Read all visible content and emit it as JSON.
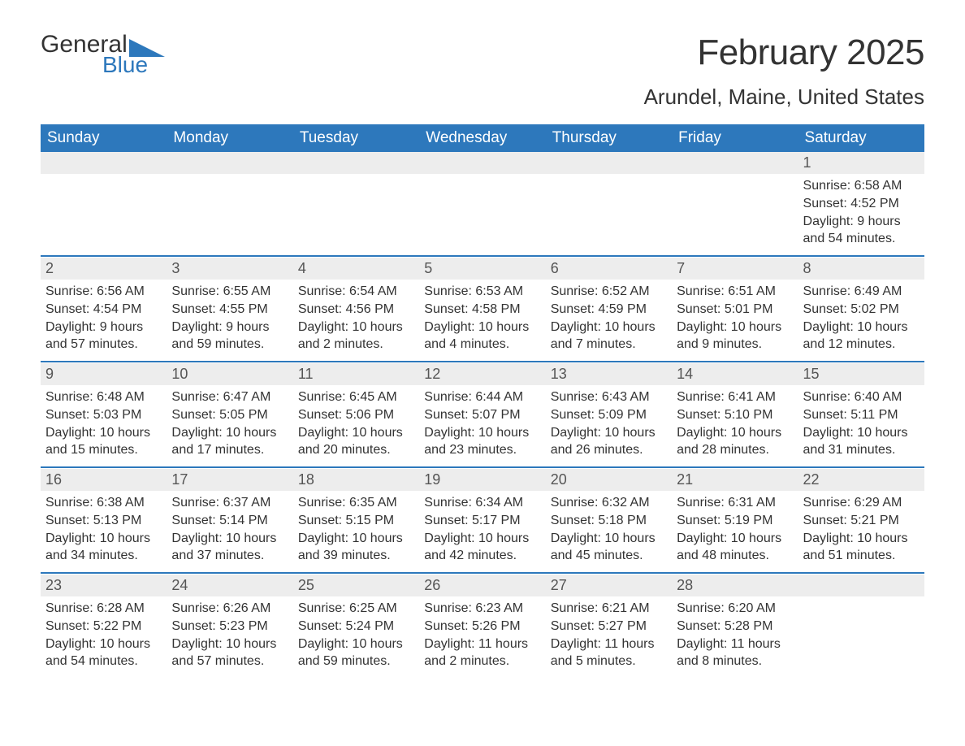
{
  "logo": {
    "text_top": "General",
    "text_bottom": "Blue",
    "accent_color": "#2d78bc"
  },
  "title": "February 2025",
  "location": "Arundel, Maine, United States",
  "colors": {
    "header_bg": "#2d78bc",
    "header_text": "#ffffff",
    "daynum_bg": "#ededed",
    "text": "#333333",
    "rule": "#2d78bc"
  },
  "day_headers": [
    "Sunday",
    "Monday",
    "Tuesday",
    "Wednesday",
    "Thursday",
    "Friday",
    "Saturday"
  ],
  "weeks": [
    [
      null,
      null,
      null,
      null,
      null,
      null,
      {
        "n": "1",
        "sunrise": "Sunrise: 6:58 AM",
        "sunset": "Sunset: 4:52 PM",
        "daylight": "Daylight: 9 hours and 54 minutes."
      }
    ],
    [
      {
        "n": "2",
        "sunrise": "Sunrise: 6:56 AM",
        "sunset": "Sunset: 4:54 PM",
        "daylight": "Daylight: 9 hours and 57 minutes."
      },
      {
        "n": "3",
        "sunrise": "Sunrise: 6:55 AM",
        "sunset": "Sunset: 4:55 PM",
        "daylight": "Daylight: 9 hours and 59 minutes."
      },
      {
        "n": "4",
        "sunrise": "Sunrise: 6:54 AM",
        "sunset": "Sunset: 4:56 PM",
        "daylight": "Daylight: 10 hours and 2 minutes."
      },
      {
        "n": "5",
        "sunrise": "Sunrise: 6:53 AM",
        "sunset": "Sunset: 4:58 PM",
        "daylight": "Daylight: 10 hours and 4 minutes."
      },
      {
        "n": "6",
        "sunrise": "Sunrise: 6:52 AM",
        "sunset": "Sunset: 4:59 PM",
        "daylight": "Daylight: 10 hours and 7 minutes."
      },
      {
        "n": "7",
        "sunrise": "Sunrise: 6:51 AM",
        "sunset": "Sunset: 5:01 PM",
        "daylight": "Daylight: 10 hours and 9 minutes."
      },
      {
        "n": "8",
        "sunrise": "Sunrise: 6:49 AM",
        "sunset": "Sunset: 5:02 PM",
        "daylight": "Daylight: 10 hours and 12 minutes."
      }
    ],
    [
      {
        "n": "9",
        "sunrise": "Sunrise: 6:48 AM",
        "sunset": "Sunset: 5:03 PM",
        "daylight": "Daylight: 10 hours and 15 minutes."
      },
      {
        "n": "10",
        "sunrise": "Sunrise: 6:47 AM",
        "sunset": "Sunset: 5:05 PM",
        "daylight": "Daylight: 10 hours and 17 minutes."
      },
      {
        "n": "11",
        "sunrise": "Sunrise: 6:45 AM",
        "sunset": "Sunset: 5:06 PM",
        "daylight": "Daylight: 10 hours and 20 minutes."
      },
      {
        "n": "12",
        "sunrise": "Sunrise: 6:44 AM",
        "sunset": "Sunset: 5:07 PM",
        "daylight": "Daylight: 10 hours and 23 minutes."
      },
      {
        "n": "13",
        "sunrise": "Sunrise: 6:43 AM",
        "sunset": "Sunset: 5:09 PM",
        "daylight": "Daylight: 10 hours and 26 minutes."
      },
      {
        "n": "14",
        "sunrise": "Sunrise: 6:41 AM",
        "sunset": "Sunset: 5:10 PM",
        "daylight": "Daylight: 10 hours and 28 minutes."
      },
      {
        "n": "15",
        "sunrise": "Sunrise: 6:40 AM",
        "sunset": "Sunset: 5:11 PM",
        "daylight": "Daylight: 10 hours and 31 minutes."
      }
    ],
    [
      {
        "n": "16",
        "sunrise": "Sunrise: 6:38 AM",
        "sunset": "Sunset: 5:13 PM",
        "daylight": "Daylight: 10 hours and 34 minutes."
      },
      {
        "n": "17",
        "sunrise": "Sunrise: 6:37 AM",
        "sunset": "Sunset: 5:14 PM",
        "daylight": "Daylight: 10 hours and 37 minutes."
      },
      {
        "n": "18",
        "sunrise": "Sunrise: 6:35 AM",
        "sunset": "Sunset: 5:15 PM",
        "daylight": "Daylight: 10 hours and 39 minutes."
      },
      {
        "n": "19",
        "sunrise": "Sunrise: 6:34 AM",
        "sunset": "Sunset: 5:17 PM",
        "daylight": "Daylight: 10 hours and 42 minutes."
      },
      {
        "n": "20",
        "sunrise": "Sunrise: 6:32 AM",
        "sunset": "Sunset: 5:18 PM",
        "daylight": "Daylight: 10 hours and 45 minutes."
      },
      {
        "n": "21",
        "sunrise": "Sunrise: 6:31 AM",
        "sunset": "Sunset: 5:19 PM",
        "daylight": "Daylight: 10 hours and 48 minutes."
      },
      {
        "n": "22",
        "sunrise": "Sunrise: 6:29 AM",
        "sunset": "Sunset: 5:21 PM",
        "daylight": "Daylight: 10 hours and 51 minutes."
      }
    ],
    [
      {
        "n": "23",
        "sunrise": "Sunrise: 6:28 AM",
        "sunset": "Sunset: 5:22 PM",
        "daylight": "Daylight: 10 hours and 54 minutes."
      },
      {
        "n": "24",
        "sunrise": "Sunrise: 6:26 AM",
        "sunset": "Sunset: 5:23 PM",
        "daylight": "Daylight: 10 hours and 57 minutes."
      },
      {
        "n": "25",
        "sunrise": "Sunrise: 6:25 AM",
        "sunset": "Sunset: 5:24 PM",
        "daylight": "Daylight: 10 hours and 59 minutes."
      },
      {
        "n": "26",
        "sunrise": "Sunrise: 6:23 AM",
        "sunset": "Sunset: 5:26 PM",
        "daylight": "Daylight: 11 hours and 2 minutes."
      },
      {
        "n": "27",
        "sunrise": "Sunrise: 6:21 AM",
        "sunset": "Sunset: 5:27 PM",
        "daylight": "Daylight: 11 hours and 5 minutes."
      },
      {
        "n": "28",
        "sunrise": "Sunrise: 6:20 AM",
        "sunset": "Sunset: 5:28 PM",
        "daylight": "Daylight: 11 hours and 8 minutes."
      },
      null
    ]
  ]
}
